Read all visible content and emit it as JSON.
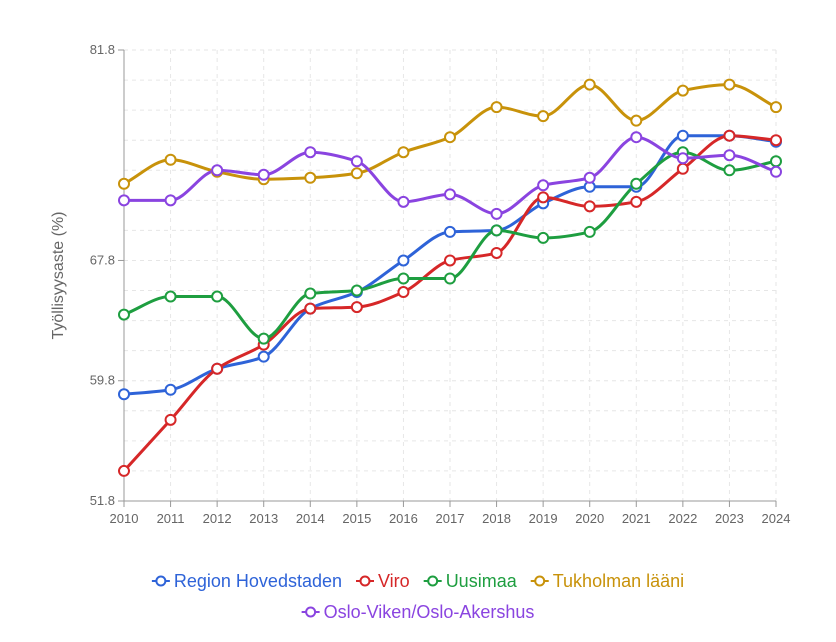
{
  "chart_data": {
    "type": "line",
    "ylabel": "Työllisyysaste (%)",
    "xlabel": "",
    "title": "",
    "ylim": [
      51.8,
      81.8
    ],
    "y_ticks": [
      "51.8",
      "59.8",
      "67.8",
      "81.8"
    ],
    "x": [
      "2010",
      "2011",
      "2012",
      "2013",
      "2014",
      "2015",
      "2016",
      "2017",
      "2018",
      "2019",
      "2020",
      "2021",
      "2022",
      "2023",
      "2024"
    ],
    "grid": true,
    "legend_position": "bottom",
    "series": [
      {
        "name": "Region Hovedstaden",
        "color": "#2E63D8",
        "values": [
          58.9,
          59.2,
          60.6,
          61.4,
          64.6,
          65.7,
          67.8,
          69.7,
          69.8,
          71.6,
          72.7,
          72.7,
          76.1,
          76.1,
          75.7
        ]
      },
      {
        "name": "Viro",
        "color": "#D62728",
        "values": [
          53.8,
          57.2,
          60.6,
          62.2,
          64.6,
          64.7,
          65.7,
          67.8,
          68.3,
          72.0,
          71.4,
          71.7,
          73.9,
          76.1,
          75.8
        ]
      },
      {
        "name": "Uusimaa",
        "color": "#1E9E40",
        "values": [
          64.2,
          65.4,
          65.4,
          62.6,
          65.6,
          65.8,
          66.6,
          66.6,
          69.8,
          69.3,
          69.7,
          72.9,
          75.0,
          73.8,
          74.4
        ]
      },
      {
        "name": "Tukholman lääni",
        "color": "#C8920A",
        "values": [
          72.9,
          74.5,
          73.7,
          73.2,
          73.3,
          73.6,
          75.0,
          76.0,
          78.0,
          77.4,
          79.5,
          77.1,
          79.1,
          79.5,
          78.0
        ]
      },
      {
        "name": "Oslo-Viken/Oslo-Akershus",
        "color": "#8A44E0",
        "values": [
          71.8,
          71.8,
          73.8,
          73.5,
          75.0,
          74.4,
          71.7,
          72.2,
          70.9,
          72.8,
          73.3,
          76.0,
          74.6,
          74.8,
          73.7
        ]
      }
    ]
  }
}
